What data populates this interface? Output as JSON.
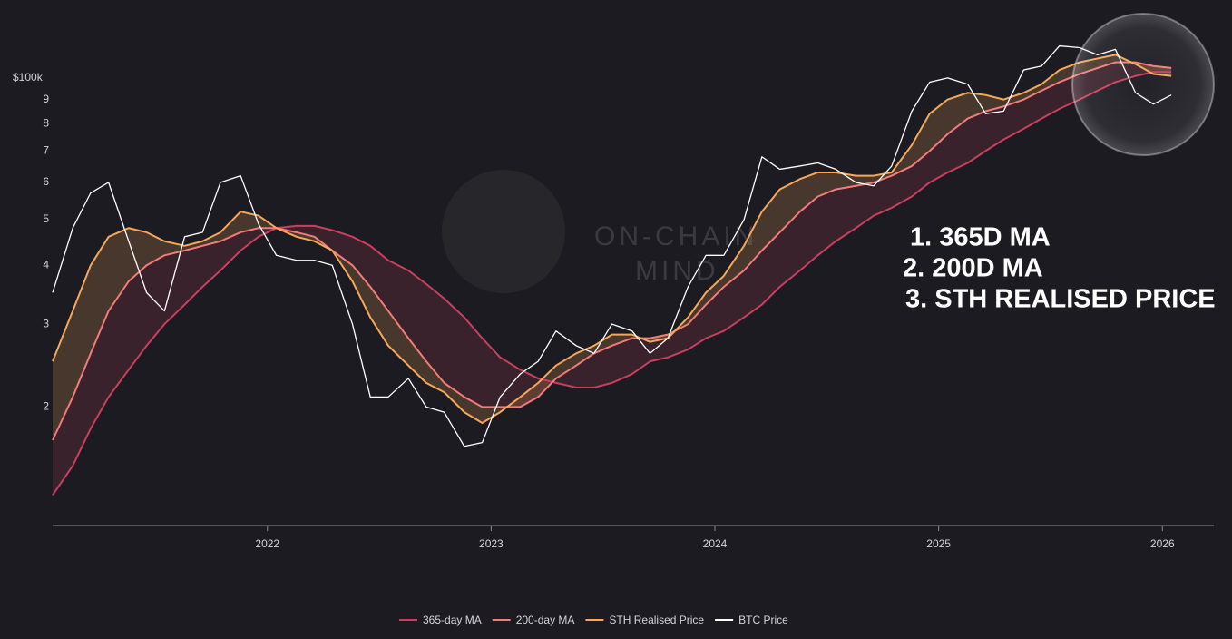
{
  "chart_data": {
    "type": "line",
    "y_unit_label": "$100k",
    "watermark": [
      "ON-CHAIN",
      "MIND"
    ],
    "annotations": [
      "1. 365D MA",
      "2. 200D MA",
      "3. STH REALISED PRICE"
    ],
    "x": [
      2021.04,
      2021.13,
      2021.21,
      2021.29,
      2021.38,
      2021.46,
      2021.54,
      2021.63,
      2021.71,
      2021.79,
      2021.88,
      2021.96,
      2022.04,
      2022.13,
      2022.21,
      2022.29,
      2022.38,
      2022.46,
      2022.54,
      2022.63,
      2022.71,
      2022.79,
      2022.88,
      2022.96,
      2023.04,
      2023.13,
      2023.21,
      2023.29,
      2023.38,
      2023.46,
      2023.54,
      2023.63,
      2023.71,
      2023.79,
      2023.88,
      2023.96,
      2024.04,
      2024.13,
      2024.21,
      2024.29,
      2024.38,
      2024.46,
      2024.54,
      2024.63,
      2024.71,
      2024.79,
      2024.88,
      2024.96,
      2025.04,
      2025.13,
      2025.21,
      2025.29,
      2025.38,
      2025.46,
      2025.54,
      2025.63,
      2025.71,
      2025.79,
      2025.88,
      2025.96,
      2026.04
    ],
    "series": [
      {
        "name": "365-day MA",
        "color": "#c8405e",
        "values": [
          13,
          15,
          18,
          21,
          24,
          27,
          30,
          33,
          36,
          39,
          43,
          46,
          48,
          48.5,
          48.5,
          47.5,
          46,
          44,
          41,
          39,
          36.5,
          34,
          31,
          28,
          25.5,
          24,
          23,
          22.5,
          22,
          22,
          22.5,
          23.5,
          25,
          25.5,
          26.5,
          28,
          29,
          31,
          33,
          36,
          39,
          42,
          45,
          48,
          51,
          53,
          56,
          60,
          63,
          66,
          70,
          74,
          78,
          82,
          86,
          90,
          94,
          98,
          101,
          103,
          103
        ]
      },
      {
        "name": "200-day MA",
        "color": "#f27c77",
        "values": [
          17,
          21,
          26,
          32,
          37,
          40,
          42,
          43,
          44,
          45,
          47,
          48,
          48,
          47,
          46,
          43,
          40,
          36,
          32,
          28,
          25,
          22.5,
          21,
          20,
          20,
          20,
          21,
          23,
          24.5,
          26,
          27,
          28,
          28,
          28.5,
          30,
          33,
          36,
          39,
          43,
          47,
          52,
          56,
          58,
          59,
          60,
          62,
          65,
          70,
          76,
          82,
          85,
          87,
          90,
          94,
          98,
          102,
          105,
          108,
          108,
          106,
          105
        ]
      },
      {
        "name": "STH Realised Price",
        "color": "#f5a85a",
        "values": [
          25,
          32,
          40,
          46,
          48,
          47,
          45,
          44,
          45,
          47,
          52,
          51,
          48,
          46,
          45,
          43,
          37,
          31,
          27,
          24.5,
          22.5,
          21.5,
          19.5,
          18.5,
          19.5,
          21,
          22.5,
          24.5,
          26,
          27,
          28.5,
          28.5,
          27.5,
          28,
          31,
          35,
          38,
          44,
          52,
          58,
          61,
          63,
          63,
          62,
          62,
          63,
          72,
          84,
          90,
          93,
          92,
          90,
          93,
          97,
          104,
          108,
          110,
          112,
          107,
          102,
          101
        ]
      },
      {
        "name": "BTC Price",
        "color": "#ffffff",
        "values": [
          35,
          48,
          57,
          60,
          45,
          35,
          32,
          46,
          47,
          60,
          62,
          49,
          42,
          41,
          41,
          40,
          30,
          21,
          21,
          23,
          20,
          19.5,
          16.5,
          16.8,
          21,
          23.5,
          25,
          29,
          27,
          26,
          30,
          29,
          26,
          28,
          36,
          42,
          42,
          50,
          68,
          64,
          65,
          66,
          64,
          60,
          59,
          65,
          85,
          98,
          100,
          97,
          84,
          85,
          104,
          106,
          117,
          116,
          112,
          115,
          93,
          88,
          92
        ]
      }
    ],
    "log_scale": true,
    "grid": false,
    "legend": "bottom",
    "xlim": [
      2021.04,
      2026.23
    ],
    "xticks": [
      2022,
      2023,
      2024,
      2025,
      2026
    ],
    "ylim": [
      11.2,
      137
    ],
    "yticks": [
      {
        "value": 90,
        "label": "9"
      },
      {
        "value": 80,
        "label": "8"
      },
      {
        "value": 70,
        "label": "7"
      },
      {
        "value": 60,
        "label": "6"
      },
      {
        "value": 50,
        "label": "5"
      },
      {
        "value": 40,
        "label": "4"
      },
      {
        "value": 30,
        "label": "3"
      },
      {
        "value": 20,
        "label": "2"
      }
    ]
  }
}
